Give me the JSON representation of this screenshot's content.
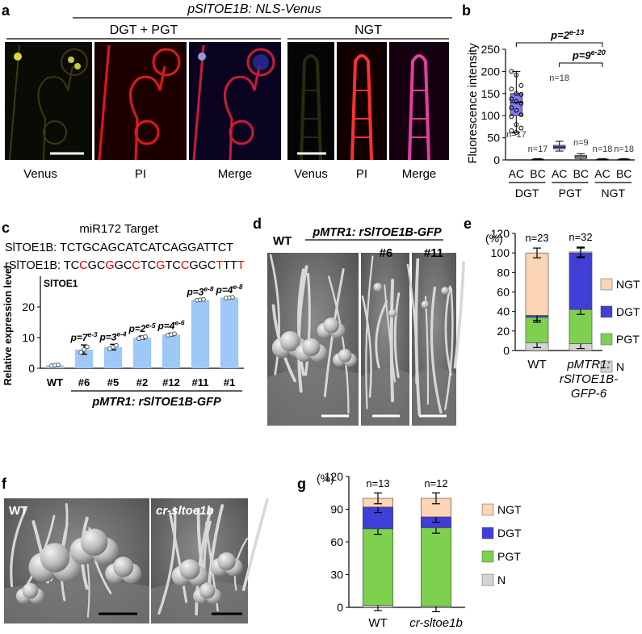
{
  "panel_a": {
    "letter": "a",
    "title": "pSlTOE1B: NLS-Venus",
    "group1": "DGT + PGT",
    "group2": "NGT",
    "image_labels": [
      "Venus",
      "PI",
      "Merge",
      "Venus",
      "PI",
      "Merge"
    ]
  },
  "panel_b": {
    "letter": "b",
    "ylabel": "Fluorescence intensity",
    "yticks": [
      "0",
      "50",
      "100",
      "150",
      "200",
      "250"
    ],
    "xticks": [
      "AC",
      "BC",
      "AC",
      "BC",
      "AC",
      "BC"
    ],
    "groups": [
      "DGT",
      "PGT",
      "NGT"
    ],
    "n_labels": [
      "n=17",
      "n=17",
      "n=18",
      "n=9",
      "n=18",
      "n=18"
    ],
    "p1": {
      "base": "p=2",
      "exp": "e-13"
    },
    "p2": {
      "base": "p=9",
      "exp": "e-20"
    }
  },
  "panel_c": {
    "letter": "c",
    "target_title": "miR172 Target",
    "seq1_label": "SlTOE1B: ",
    "seq1": "TCTGCAGCATCATCAGGATTCT",
    "seq2_label": "rSlTOE1B: ",
    "seq2_parts": [
      {
        "t": "TC",
        "m": false
      },
      {
        "t": "C",
        "m": true
      },
      {
        "t": "GC",
        "m": false
      },
      {
        "t": "G",
        "m": true
      },
      {
        "t": "GC",
        "m": false
      },
      {
        "t": "C",
        "m": true
      },
      {
        "t": "TC",
        "m": false
      },
      {
        "t": "G",
        "m": true
      },
      {
        "t": "TC",
        "m": false
      },
      {
        "t": "C",
        "m": true
      },
      {
        "t": "GGC",
        "m": false
      },
      {
        "t": "T",
        "m": true
      },
      {
        "t": "TT",
        "m": false
      },
      {
        "t": "T",
        "m": true
      }
    ],
    "gene_label": "SlTOE1",
    "footer": "pMTR1: rSlTOE1B-GFP",
    "p_values": [
      {
        "base": "p=7",
        "exp": "e-3"
      },
      {
        "base": "p=3",
        "exp": "e-4"
      },
      {
        "base": "p=2",
        "exp": "e-5"
      },
      {
        "base": "p=4",
        "exp": "e-6"
      },
      {
        "base": "p=3",
        "exp": "e-8"
      },
      {
        "base": "p=4",
        "exp": "e-8"
      }
    ]
  },
  "panel_d": {
    "letter": "d",
    "construct": "pMTR1: rSlTOE1B-GFP",
    "labels": [
      "WT",
      "#6",
      "#11"
    ]
  },
  "panel_e": {
    "letter": "e",
    "unit": "(%)",
    "yticks": [
      "0",
      "20",
      "40",
      "60",
      "80",
      "100",
      "120"
    ],
    "n_labels": [
      "n=23",
      "n=32"
    ],
    "xlabels": [
      "WT",
      "pMTR1:",
      "rSlTOE1B-",
      "GFP-6"
    ],
    "legend": [
      "NGT",
      "DGT",
      "PGT",
      "N"
    ]
  },
  "panel_f": {
    "letter": "f",
    "labels": [
      "WT",
      "cr-sltoe1b"
    ]
  },
  "panel_g": {
    "letter": "g",
    "unit": "(%)",
    "yticks": [
      "0",
      "30",
      "60",
      "90",
      "120"
    ],
    "n_labels": [
      "n=13",
      "n=12"
    ],
    "xlabels": [
      "WT",
      "cr-sltoe1b"
    ],
    "legend": [
      "NGT",
      "DGT",
      "PGT",
      "N"
    ]
  },
  "colors": {
    "ngt": "#fcd5b4",
    "dgt": "#3f3fd8",
    "pgt": "#7fd04f",
    "n": "#d4d4d4",
    "bar_c": "#9ec8f5",
    "box_dgt": "#7b78e8",
    "mutation": "#e00000"
  },
  "chart_data": [
    {
      "type": "box",
      "categories": [
        "DGT AC",
        "DGT BC",
        "PGT AC",
        "PGT BC",
        "NGT AC",
        "NGT BC"
      ],
      "series": [
        {
          "values": [
            130,
            1,
            29,
            7,
            1,
            1
          ]
        }
      ],
      "quartiles": [
        [
          100,
          150
        ],
        [
          0,
          2
        ],
        [
          25,
          33
        ],
        [
          3,
          10
        ],
        [
          0,
          2
        ],
        [
          0,
          2
        ]
      ],
      "whiskers": [
        [
          62,
          200
        ],
        [
          0,
          3
        ],
        [
          20,
          42
        ],
        [
          0,
          14
        ],
        [
          0,
          3
        ],
        [
          0,
          3
        ]
      ],
      "ylabel": "Fluorescence intensity",
      "ylim": [
        0,
        250
      ]
    },
    {
      "type": "bar",
      "categories": [
        "WT",
        "#6",
        "#5",
        "#2",
        "#12",
        "#11",
        "#1"
      ],
      "values": [
        1,
        6.1,
        6.9,
        10,
        11,
        22.3,
        23
      ],
      "errors": [
        0.3,
        1.5,
        0.9,
        0.5,
        0.4,
        0.2,
        0.2
      ],
      "ylabel": "Relative expression level",
      "yticks": [
        "0",
        "10",
        "20"
      ],
      "ylim": [
        0,
        30
      ]
    },
    {
      "type": "bar",
      "stacked": true,
      "categories": [
        "WT",
        "pMTR1: rSlTOE1B-GFP-6"
      ],
      "series": [
        {
          "name": "N",
          "values": [
            8,
            7
          ]
        },
        {
          "name": "PGT",
          "values": [
            26,
            35
          ]
        },
        {
          "name": "DGT",
          "values": [
            2,
            58
          ]
        },
        {
          "name": "NGT",
          "values": [
            64,
            1
          ]
        }
      ],
      "ylabel": "(%)",
      "ylim": [
        0,
        120
      ]
    },
    {
      "type": "bar",
      "stacked": true,
      "categories": [
        "WT",
        "cr-sltoe1b"
      ],
      "series": [
        {
          "name": "N",
          "values": [
            2,
            1
          ]
        },
        {
          "name": "PGT",
          "values": [
            70,
            72
          ]
        },
        {
          "name": "DGT",
          "values": [
            20,
            10
          ]
        },
        {
          "name": "NGT",
          "values": [
            8,
            17
          ]
        }
      ],
      "ylabel": "(%)",
      "ylim": [
        0,
        120
      ]
    }
  ]
}
